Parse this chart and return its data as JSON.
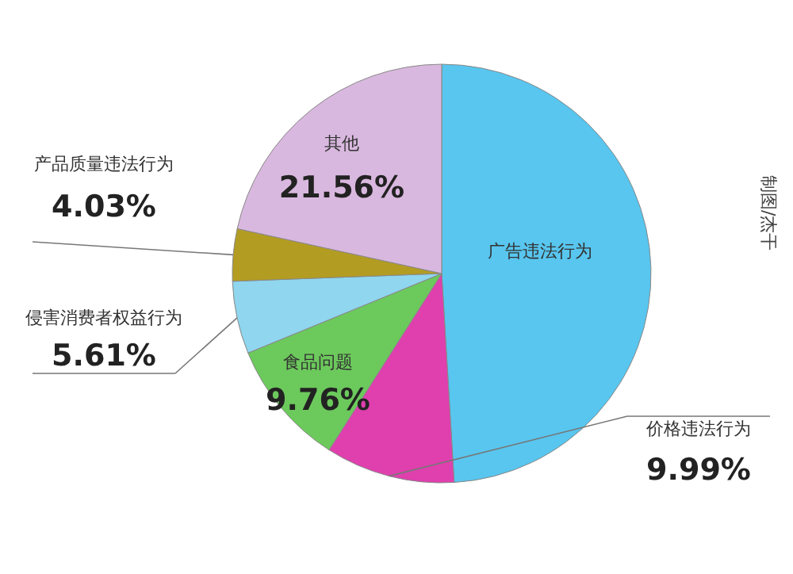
{
  "chart_data": {
    "type": "pie",
    "categories": [
      "广告违法行为",
      "价格违法行为",
      "食品问题",
      "侵害消费者权益行为",
      "产品质量违法行为",
      "其他"
    ],
    "values": [
      49.05,
      9.99,
      9.76,
      5.61,
      4.03,
      21.56
    ],
    "colors": [
      "#58c6ef",
      "#e03fae",
      "#6cc95c",
      "#8fd6ee",
      "#b39c22",
      "#d9b8df"
    ],
    "value_labels": [
      null,
      "9.99%",
      "9.76%",
      "5.61%",
      "4.03%",
      "21.56%"
    ],
    "annotations": [
      "制图/杰干"
    ],
    "legend": false
  }
}
